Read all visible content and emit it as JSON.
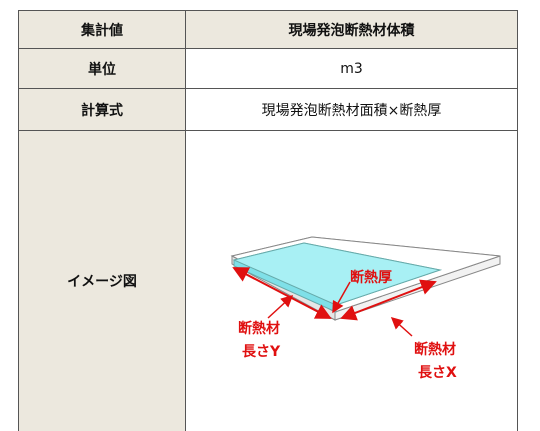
{
  "table": {
    "rows": [
      [
        "集計値",
        "現場発泡断熱材体積"
      ],
      [
        "単位",
        "m3"
      ],
      [
        "計算式",
        "現場発泡断熱材面積×断熱厚"
      ],
      [
        "イメージ図"
      ]
    ]
  },
  "diagram": {
    "thickness_label": "断熱厚",
    "length_y_label": [
      "断熱材",
      "長さY"
    ],
    "length_x_label": [
      "断熱材",
      "長さX"
    ]
  }
}
